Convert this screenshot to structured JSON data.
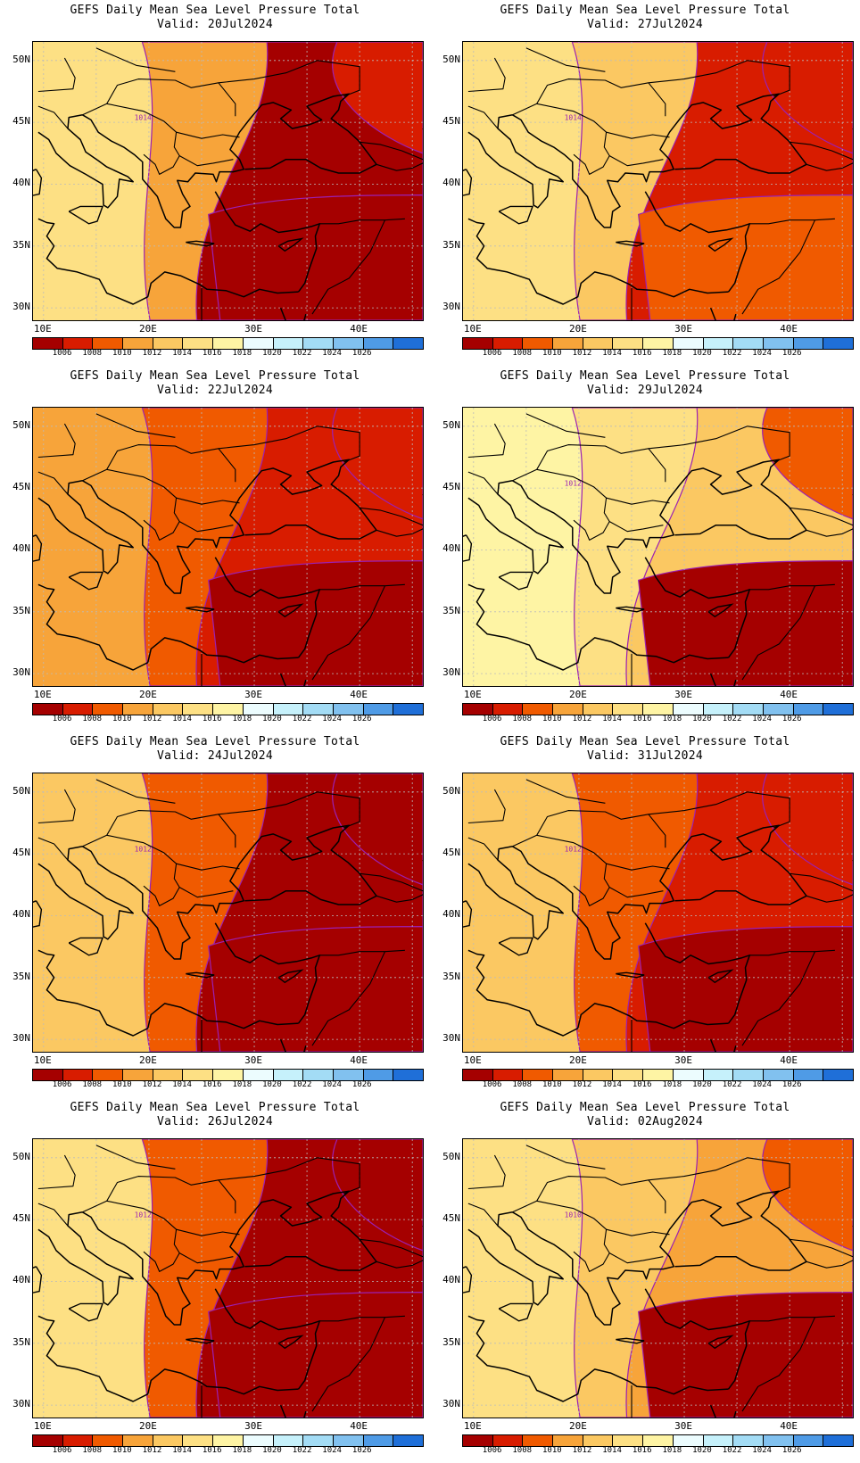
{
  "colorbar": {
    "colors": [
      "#a50000",
      "#d81c00",
      "#f05a00",
      "#f7a43a",
      "#fbc862",
      "#fde084",
      "#fef4a4",
      "#ecfcfe",
      "#c6f1fb",
      "#a3dcf5",
      "#81c1ef",
      "#4f9be6",
      "#1f6fd8"
    ],
    "labels": [
      "1006",
      "1008",
      "1010",
      "1012",
      "1014",
      "1016",
      "1018",
      "1020",
      "1022",
      "1024",
      "1026"
    ]
  },
  "axes": {
    "lat_labels": [
      "50N",
      "45N",
      "40N",
      "35N",
      "30N"
    ],
    "lon_labels": [
      "10E",
      "20E",
      "30E",
      "40E"
    ]
  },
  "panels": [
    {
      "id": "p1",
      "title": "GEFS Daily Mean Sea Level Pressure Total",
      "valid": "Valid: 20Jul2024",
      "contour_label": "1014",
      "west": "#fde084",
      "mid": "#f7a43a",
      "east": "#a50000",
      "ne": "#d81c00",
      "south": "#a50000"
    },
    {
      "id": "p2",
      "title": "GEFS Daily Mean Sea Level Pressure Total",
      "valid": "Valid: 27Jul2024",
      "contour_label": "1014",
      "west": "#fde084",
      "mid": "#fbc862",
      "east": "#d81c00",
      "ne": "#d81c00",
      "south": "#f05a00"
    },
    {
      "id": "p3",
      "title": "GEFS Daily Mean Sea Level Pressure Total",
      "valid": "Valid: 22Jul2024",
      "contour_label": "",
      "west": "#f7a43a",
      "mid": "#f05a00",
      "east": "#d81c00",
      "ne": "#d81c00",
      "south": "#a50000"
    },
    {
      "id": "p4",
      "title": "GEFS Daily Mean Sea Level Pressure Total",
      "valid": "Valid: 29Jul2024",
      "contour_label": "1012",
      "west": "#fef4a4",
      "mid": "#fde084",
      "east": "#fbc862",
      "ne": "#f05a00",
      "south": "#a50000"
    },
    {
      "id": "p5",
      "title": "GEFS Daily Mean Sea Level Pressure Total",
      "valid": "Valid: 24Jul2024",
      "contour_label": "1012",
      "west": "#fbc862",
      "mid": "#f05a00",
      "east": "#a50000",
      "ne": "#a50000",
      "south": "#a50000"
    },
    {
      "id": "p6",
      "title": "GEFS Daily Mean Sea Level Pressure Total",
      "valid": "Valid: 31Jul2024",
      "contour_label": "1012",
      "west": "#fbc862",
      "mid": "#f05a00",
      "east": "#d81c00",
      "ne": "#d81c00",
      "south": "#a50000"
    },
    {
      "id": "p7",
      "title": "GEFS Daily Mean Sea Level Pressure Total",
      "valid": "Valid: 26Jul2024",
      "contour_label": "1012",
      "west": "#fde084",
      "mid": "#f05a00",
      "east": "#a50000",
      "ne": "#a50000",
      "south": "#a50000"
    },
    {
      "id": "p8",
      "title": "GEFS Daily Mean Sea Level Pressure Total",
      "valid": "Valid: 02Aug2024",
      "contour_label": "1010",
      "west": "#fde084",
      "mid": "#fbc862",
      "east": "#f7a43a",
      "ne": "#f05a00",
      "south": "#a50000"
    }
  ]
}
